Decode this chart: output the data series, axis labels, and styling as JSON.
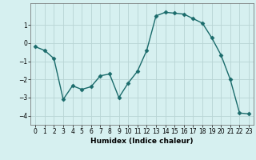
{
  "xlabel": "Humidex (Indice chaleur)",
  "x": [
    0,
    1,
    2,
    3,
    4,
    5,
    6,
    7,
    8,
    9,
    10,
    11,
    12,
    13,
    14,
    15,
    16,
    17,
    18,
    19,
    20,
    21,
    22,
    23
  ],
  "y": [
    -0.2,
    -0.4,
    -0.85,
    -3.1,
    -2.35,
    -2.55,
    -2.4,
    -1.8,
    -1.7,
    -3.0,
    -2.2,
    -1.55,
    -0.4,
    1.5,
    1.7,
    1.65,
    1.6,
    1.35,
    1.1,
    0.3,
    -0.65,
    -2.0,
    -3.85,
    -3.9
  ],
  "line_color": "#1a6b6b",
  "marker": "D",
  "marker_size": 2.5,
  "bg_color": "#d6f0f0",
  "grid_color": "#b8d4d4",
  "ylim": [
    -4.5,
    2.2
  ],
  "yticks": [
    -4,
    -3,
    -2,
    -1,
    0,
    1
  ],
  "xlim": [
    -0.5,
    23.5
  ],
  "xticks": [
    0,
    1,
    2,
    3,
    4,
    5,
    6,
    7,
    8,
    9,
    10,
    11,
    12,
    13,
    14,
    15,
    16,
    17,
    18,
    19,
    20,
    21,
    22,
    23
  ],
  "xlabel_fontsize": 6.5,
  "tick_fontsize": 5.5,
  "linewidth": 1.0
}
